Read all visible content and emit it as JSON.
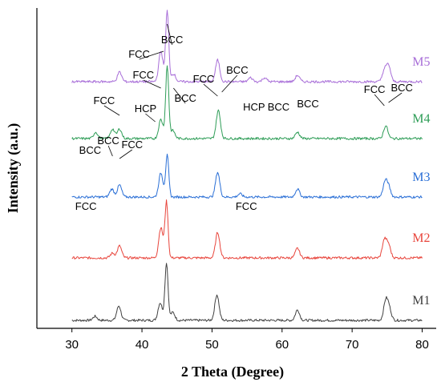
{
  "chart_data": {
    "type": "line",
    "xlabel": "2 Theta (Degree)",
    "ylabel": "Intensity (a.u.)",
    "xlim": [
      25,
      82
    ],
    "xticks": [
      30,
      40,
      50,
      60,
      70,
      80
    ],
    "y_ticks_shown": false,
    "series": [
      {
        "name": "M1",
        "color": "#404040",
        "offset": 0,
        "baseline": 10,
        "peaks": [
          [
            33.3,
            5
          ],
          [
            36.7,
            18
          ],
          [
            42.6,
            22
          ],
          [
            43.5,
            72
          ],
          [
            44.4,
            10
          ],
          [
            50.7,
            32
          ],
          [
            62.2,
            13
          ],
          [
            74.8,
            24
          ],
          [
            75.3,
            14
          ]
        ]
      },
      {
        "name": "M2",
        "color": "#e8453c",
        "offset": 78,
        "baseline": 10,
        "peaks": [
          [
            35.8,
            6
          ],
          [
            36.8,
            15
          ],
          [
            42.7,
            38
          ],
          [
            43.5,
            70
          ],
          [
            50.8,
            32
          ],
          [
            62.2,
            12
          ],
          [
            74.6,
            22
          ],
          [
            75.2,
            16
          ]
        ]
      },
      {
        "name": "M3",
        "color": "#2a6fd6",
        "offset": 154,
        "baseline": 10,
        "peaks": [
          [
            35.7,
            10
          ],
          [
            36.8,
            15
          ],
          [
            42.7,
            30
          ],
          [
            43.6,
            52
          ],
          [
            50.8,
            31
          ],
          [
            54.0,
            4
          ],
          [
            62.2,
            10
          ],
          [
            74.7,
            18
          ],
          [
            75.2,
            12
          ]
        ]
      },
      {
        "name": "M4",
        "color": "#2e9d57",
        "offset": 227,
        "baseline": 10,
        "peaks": [
          [
            33.4,
            8
          ],
          [
            35.8,
            12
          ],
          [
            36.8,
            12
          ],
          [
            42.7,
            24
          ],
          [
            43.6,
            90
          ],
          [
            44.4,
            10
          ],
          [
            50.9,
            35
          ],
          [
            62.2,
            8
          ],
          [
            74.8,
            16
          ]
        ]
      },
      {
        "name": "M5",
        "color": "#a86ed8",
        "offset": 298,
        "baseline": 10,
        "peaks": [
          [
            36.8,
            12
          ],
          [
            42.7,
            38
          ],
          [
            43.6,
            88
          ],
          [
            44.5,
            10
          ],
          [
            50.8,
            27
          ],
          [
            55.5,
            5
          ],
          [
            57.5,
            5
          ],
          [
            62.2,
            8
          ],
          [
            74.6,
            14
          ],
          [
            75.2,
            20
          ]
        ]
      }
    ],
    "annotations": [
      {
        "text": "BCC",
        "x": 44.3,
        "yoffset": 356,
        "leader": [
          43.6,
          380
        ]
      },
      {
        "text": "FCC",
        "x": 39.6,
        "yoffset": 338,
        "leader": [
          43.1,
          346
        ]
      },
      {
        "text": "FCC",
        "x": 40.2,
        "yoffset": 312,
        "leader": [
          42.7,
          300
        ]
      },
      {
        "text": "FCC",
        "x": 34.6,
        "yoffset": 280,
        "leader": [
          36.8,
          266
        ]
      },
      {
        "text": "HCP",
        "x": 40.5,
        "yoffset": 270,
        "leader": [
          41.9,
          258
        ]
      },
      {
        "text": "BCC",
        "x": 46.2,
        "yoffset": 283,
        "leader": [
          44.5,
          300
        ]
      },
      {
        "text": "FCC",
        "x": 48.8,
        "yoffset": 307,
        "leader": [
          50.8,
          290
        ]
      },
      {
        "text": "BCC",
        "x": 53.6,
        "yoffset": 318,
        "leader": [
          51.4,
          295
        ]
      },
      {
        "text": "HCP",
        "x": 56.0,
        "yoffset": 272,
        "leader": null
      },
      {
        "text": "BCC",
        "x": 59.5,
        "yoffset": 272,
        "leader": null
      },
      {
        "text": "BCC",
        "x": 63.7,
        "yoffset": 276,
        "leader": null
      },
      {
        "text": "FCC",
        "x": 73.2,
        "yoffset": 294,
        "leader": [
          74.6,
          278
        ]
      },
      {
        "text": "BCC",
        "x": 77.1,
        "yoffset": 296,
        "leader": [
          75.2,
          282
        ]
      },
      {
        "text": "BCC",
        "x": 32.6,
        "yoffset": 218,
        "leader": null
      },
      {
        "text": "BCC",
        "x": 35.2,
        "yoffset": 230,
        "leader": [
          35.8,
          215
        ]
      },
      {
        "text": "FCC",
        "x": 38.6,
        "yoffset": 225,
        "leader": [
          36.8,
          212
        ]
      },
      {
        "text": "FCC",
        "x": 32.0,
        "yoffset": 148,
        "leader": null
      },
      {
        "text": "FCC",
        "x": 54.9,
        "yoffset": 148,
        "leader": null
      }
    ]
  }
}
